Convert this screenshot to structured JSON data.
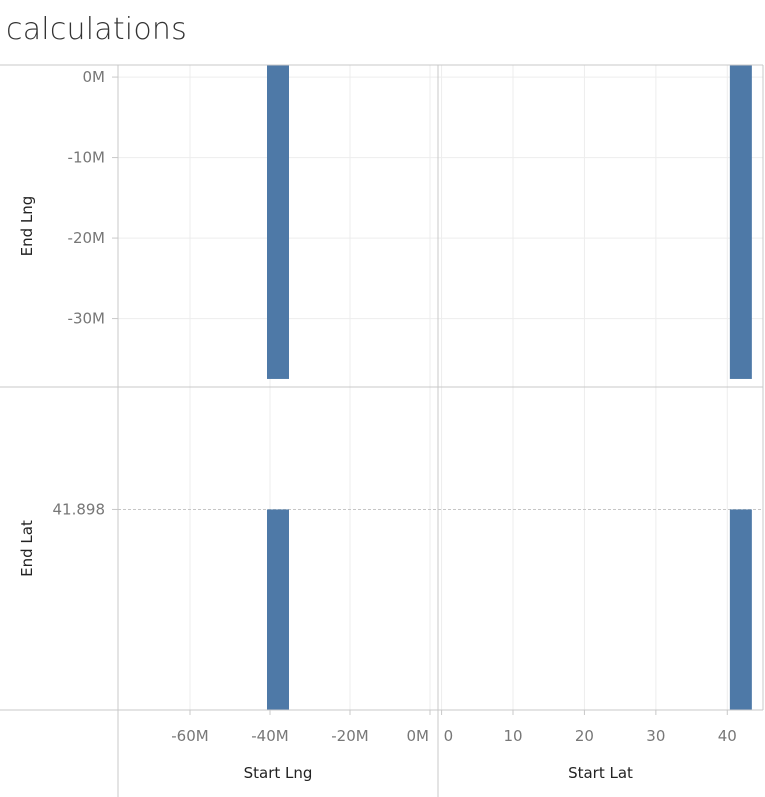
{
  "title": "calculations",
  "chart_data": {
    "type": "bar",
    "grid": true,
    "bar_color": "#4e79a7",
    "columns": [
      {
        "xlabel": "Start Lng",
        "xticks": [
          {
            "value": -60000000,
            "label": "-60M"
          },
          {
            "value": -40000000,
            "label": "-40M"
          },
          {
            "value": -20000000,
            "label": "-20M"
          },
          {
            "value": 0,
            "label": "0M"
          }
        ],
        "xlim": [
          -78000000,
          2000000
        ],
        "bar_x": -38000000
      },
      {
        "xlabel": "Start Lat",
        "xticks": [
          {
            "value": 0,
            "label": "0"
          },
          {
            "value": 10,
            "label": "10"
          },
          {
            "value": 20,
            "label": "20"
          },
          {
            "value": 30,
            "label": "30"
          },
          {
            "value": 40,
            "label": "40"
          }
        ],
        "xlim": [
          -0.5,
          45
        ],
        "bar_x": 41.9
      }
    ],
    "rows": [
      {
        "ylabel": "End Lng",
        "yticks": [
          {
            "value": 0,
            "label": "0M"
          },
          {
            "value": -10000000,
            "label": "-10M"
          },
          {
            "value": -20000000,
            "label": "-20M"
          },
          {
            "value": -30000000,
            "label": "-30M"
          }
        ],
        "ylim": [
          -38500000,
          1500000
        ],
        "bar_y": -37500000
      },
      {
        "ylabel": "End Lat",
        "yticks": [
          {
            "value": 41.898,
            "label": "41.898"
          }
        ],
        "ylim": [
          0,
          67.48
        ],
        "bar_y": 41.898,
        "reference_line": 41.898
      }
    ]
  }
}
